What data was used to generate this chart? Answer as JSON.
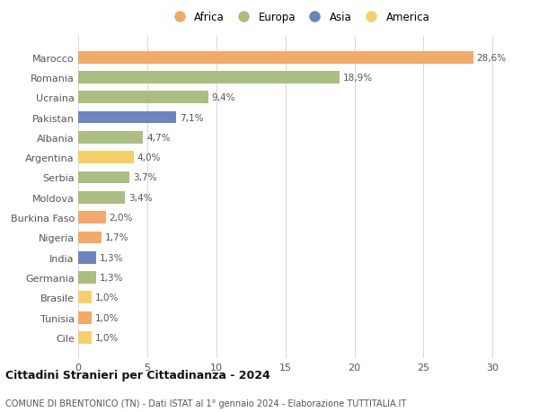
{
  "countries": [
    "Marocco",
    "Romania",
    "Ucraina",
    "Pakistan",
    "Albania",
    "Argentina",
    "Serbia",
    "Moldova",
    "Burkina Faso",
    "Nigeria",
    "India",
    "Germania",
    "Brasile",
    "Tunisia",
    "Cile"
  ],
  "values": [
    28.6,
    18.9,
    9.4,
    7.1,
    4.7,
    4.0,
    3.7,
    3.4,
    2.0,
    1.7,
    1.3,
    1.3,
    1.0,
    1.0,
    1.0
  ],
  "labels": [
    "28,6%",
    "18,9%",
    "9,4%",
    "7,1%",
    "4,7%",
    "4,0%",
    "3,7%",
    "3,4%",
    "2,0%",
    "1,7%",
    "1,3%",
    "1,3%",
    "1,0%",
    "1,0%",
    "1,0%"
  ],
  "continents": [
    "Africa",
    "Europa",
    "Europa",
    "Asia",
    "Europa",
    "America",
    "Europa",
    "Europa",
    "Africa",
    "Africa",
    "Asia",
    "Europa",
    "America",
    "Africa",
    "America"
  ],
  "colors": {
    "Africa": "#F2A96A",
    "Europa": "#ABBE82",
    "Asia": "#6E84C0",
    "America": "#F5D06A"
  },
  "legend_order": [
    "Africa",
    "Europa",
    "Asia",
    "America"
  ],
  "title": "Cittadini Stranieri per Cittadinanza - 2024",
  "subtitle": "COMUNE DI BRENTONICO (TN) - Dati ISTAT al 1° gennaio 2024 - Elaborazione TUTTITALIA.IT",
  "xlim": [
    0,
    32
  ],
  "xticks": [
    0,
    5,
    10,
    15,
    20,
    25,
    30
  ],
  "background_color": "#ffffff",
  "grid_color": "#d8d8d8",
  "bar_height": 0.62
}
